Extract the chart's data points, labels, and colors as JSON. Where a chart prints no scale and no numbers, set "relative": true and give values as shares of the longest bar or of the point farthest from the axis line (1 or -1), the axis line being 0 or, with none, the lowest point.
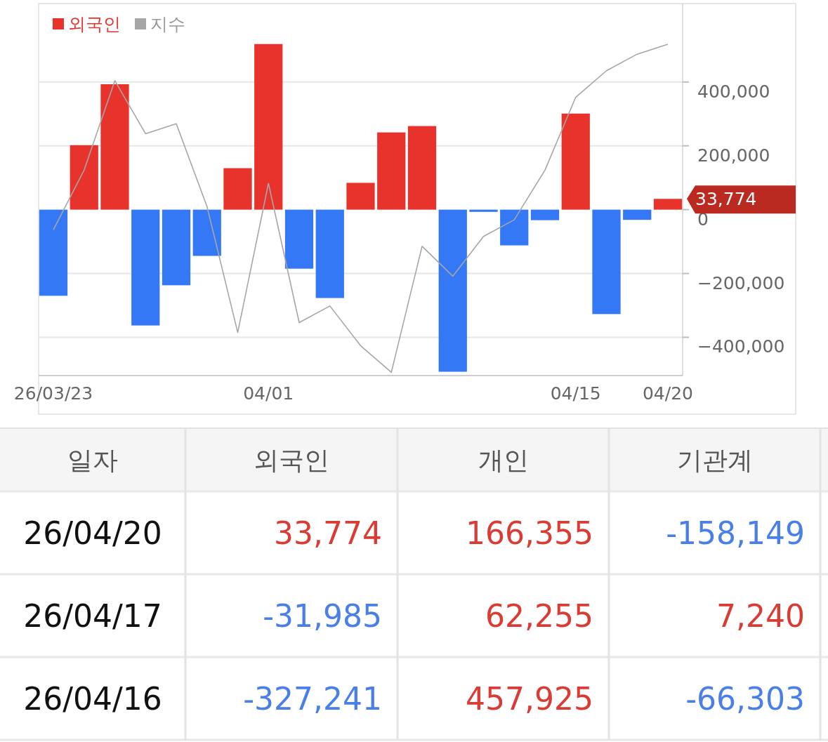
{
  "chart_data": [
    {
      "type": "bar",
      "legend": "top left",
      "grid": "y",
      "categories": [
        "26/03/23",
        null,
        null,
        null,
        null,
        null,
        null,
        "04/01",
        null,
        null,
        null,
        null,
        null,
        null,
        null,
        null,
        null,
        "04/15",
        null,
        null,
        "04/20"
      ],
      "ylim": [
        -520000,
        646000
      ],
      "yticks": [
        {
          "value": -400000,
          "label": "−400,000"
        },
        {
          "value": -200000,
          "label": "−200,000"
        },
        0,
        {
          "value": 200000,
          "label": "200,000"
        },
        {
          "value": 400000,
          "label": "400,000"
        }
      ],
      "annotations": [
        "33,774"
      ],
      "series": [
        {
          "name": "외국인",
          "color": "#e8332c",
          "colors": [
            "#3478f6",
            "#e8332c",
            "#e8332c",
            "#3478f6",
            "#3478f6",
            "#3478f6",
            "#e8332c",
            "#e8332c",
            "#3478f6",
            "#3478f6",
            "#e8332c",
            "#e8332c",
            "#e8332c",
            "#3478f6",
            "#3478f6",
            "#3478f6",
            "#3478f6",
            "#e8332c",
            "#3478f6",
            "#3478f6",
            "#e8332c"
          ],
          "values": [
            -270000,
            202000,
            393000,
            -363000,
            -237000,
            -145000,
            130000,
            519000,
            -185000,
            -277000,
            84000,
            242000,
            262000,
            -508000,
            -7000,
            -112000,
            -33000,
            301000,
            -327241,
            -31985,
            33774
          ]
        }
      ]
    },
    {
      "type": "line",
      "relative": true,
      "legend": "top left",
      "tick_labels": false,
      "categories": [
        null,
        null,
        null,
        null,
        null,
        null,
        null,
        null,
        null,
        null,
        null,
        null,
        null,
        null,
        null,
        null,
        null,
        null,
        null,
        null,
        null
      ],
      "series": [
        {
          "name": "지수",
          "color": "#a6a6a6",
          "values": [
            0.44,
            0.62,
            0.89,
            0.73,
            0.76,
            0.51,
            0.13,
            0.58,
            0.16,
            0.21,
            0.09,
            0.01,
            0.39,
            0.3,
            0.42,
            0.47,
            0.62,
            0.84,
            0.92,
            0.97,
            1
          ]
        }
      ]
    },
    {
      "type": "other",
      "categories": [
        "일자",
        "외국인",
        "개인",
        "기관계"
      ],
      "annotations": [
        "26/04/20",
        "33,774",
        "166,355",
        "-158,149",
        "26/04/17",
        "-31,985",
        "62,255",
        "7,240",
        "26/04/16",
        "-327,241",
        "457,925",
        "-66,303"
      ]
    }
  ]
}
